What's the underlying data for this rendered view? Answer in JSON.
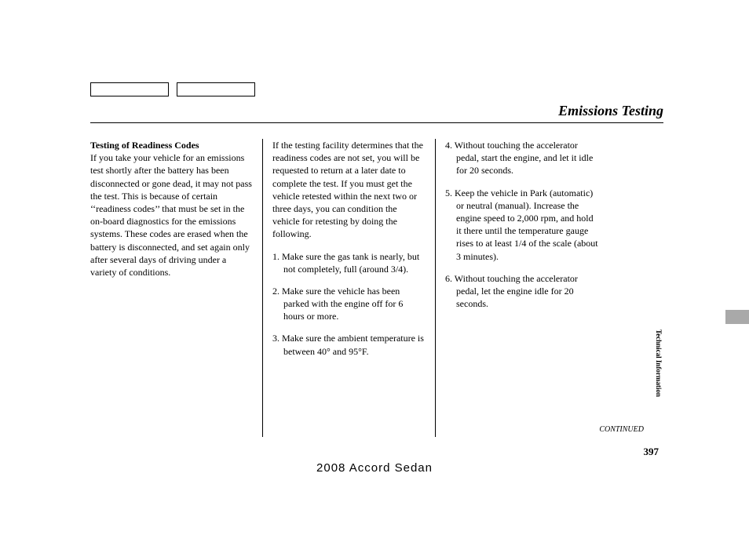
{
  "title": "Emissions Testing",
  "section_heading": "Testing of Readiness Codes",
  "col1_para": "If you take your vehicle for an emissions test shortly after the battery has been disconnected or gone dead, it may not pass the test. This is because of certain ‘‘readiness codes’’ that must be set in the on-board diagnostics for the emissions systems. These codes are erased when the battery is disconnected, and set again only after several days of driving under a variety of conditions.",
  "col2_intro": "If the testing facility determines that the readiness codes are not set, you will be requested to return at a later date to complete the test. If you must get the vehicle retested within the next two or three days, you can condition the vehicle for retesting by doing the following.",
  "step1": "1. Make sure the gas tank is nearly, but not completely, full (around 3/4).",
  "step2": "2. Make sure the vehicle has been parked with the engine off for 6 hours or more.",
  "step3": "3. Make sure the ambient temperature is between 40° and 95°F.",
  "step4": "4. Without touching the accelerator pedal, start the engine, and let it idle for 20 seconds.",
  "step5": "5. Keep the vehicle in Park (automatic) or neutral (manual). Increase the engine speed to 2,000 rpm, and hold it there until the temperature gauge rises to at least 1/4 of the scale (about 3 minutes).",
  "step6": "6. Without touching the accelerator pedal, let the engine idle for 20 seconds.",
  "continued": "CONTINUED",
  "page_number": "397",
  "footer": "2008  Accord  Sedan",
  "side_label": "Technical Information"
}
